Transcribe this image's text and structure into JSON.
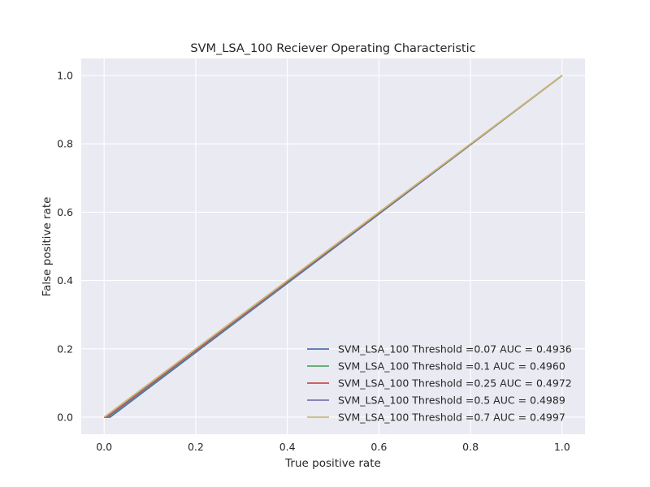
{
  "chart_data": {
    "type": "line",
    "title": "SVM_LSA_100 Reciever Operating Characteristic",
    "xlabel": "True positive rate",
    "ylabel": "False positive rate",
    "xlim": [
      -0.05,
      1.05
    ],
    "ylim": [
      -0.05,
      1.05
    ],
    "xticks": [
      "0.0",
      "0.2",
      "0.4",
      "0.6",
      "0.8",
      "1.0"
    ],
    "yticks": [
      "0.0",
      "0.2",
      "0.4",
      "0.6",
      "0.8",
      "1.0"
    ],
    "grid": true,
    "legend_position": "lower-right",
    "background": "#eaeaf2",
    "series": [
      {
        "name": "SVM_LSA_100 Threshold =0.07 AUC = 0.4936",
        "color": "#4c72b0",
        "x": [
          0.0,
          0.013,
          1.0
        ],
        "y": [
          0.0,
          0.0,
          1.0
        ]
      },
      {
        "name": "SVM_LSA_100 Threshold =0.1 AUC = 0.4960",
        "color": "#55a868",
        "x": [
          0.0,
          0.008,
          1.0
        ],
        "y": [
          0.0,
          0.0,
          1.0
        ]
      },
      {
        "name": "SVM_LSA_100 Threshold =0.25 AUC = 0.4972",
        "color": "#c44e52",
        "x": [
          0.0,
          0.006,
          1.0
        ],
        "y": [
          0.0,
          0.0,
          1.0
        ]
      },
      {
        "name": "SVM_LSA_100 Threshold =0.5 AUC = 0.4989",
        "color": "#8172b2",
        "x": [
          0.0,
          0.002,
          1.0
        ],
        "y": [
          0.0,
          0.0,
          1.0
        ]
      },
      {
        "name": "SVM_LSA_100 Threshold =0.7 AUC = 0.4997",
        "color": "#ccb974",
        "x": [
          0.0,
          0.0,
          1.0
        ],
        "y": [
          0.0,
          0.0,
          1.0
        ]
      }
    ]
  }
}
